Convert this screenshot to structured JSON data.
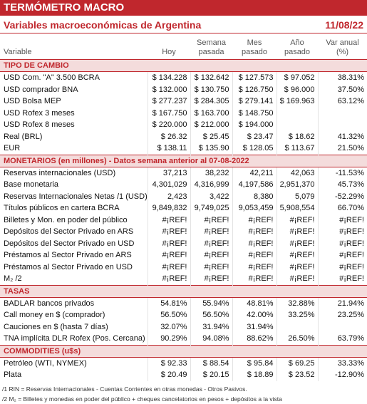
{
  "header": {
    "title": "TERMÓMETRO MACRO",
    "subtitle": "Variables macroeconómicas de Argentina",
    "date": "11/08/22"
  },
  "columns": [
    "Variable",
    "Hoy",
    "Semana pasada",
    "Mes pasado",
    "Año pasado",
    "Var anual (%)"
  ],
  "sections": [
    {
      "title": "TIPO DE CAMBIO",
      "rows": [
        [
          "USD Com. \"A\" 3.500 BCRA",
          "$ 134.228",
          "$ 132.642",
          "$ 127.573",
          "$ 97.052",
          "38.31%"
        ],
        [
          "USD comprador BNA",
          "$ 132.000",
          "$ 130.750",
          "$ 126.750",
          "$ 96.000",
          "37.50%"
        ],
        [
          "USD Bolsa MEP",
          "$ 277.237",
          "$ 284.305",
          "$ 279.141",
          "$ 169.963",
          "63.12%"
        ],
        [
          "USD Rofex 3 meses",
          "$ 167.750",
          "$ 163.700",
          "$ 148.750",
          null,
          null
        ],
        [
          "USD Rofex 8 meses",
          "$ 220.000",
          "$ 212.000",
          "$ 194.000",
          null,
          null
        ],
        [
          "Real (BRL)",
          "$ 26.32",
          "$ 25.45",
          "$ 23.47",
          "$ 18.62",
          "41.32%"
        ],
        [
          "EUR",
          "$ 138.11",
          "$ 135.90",
          "$ 128.05",
          "$ 113.67",
          "21.50%"
        ]
      ]
    },
    {
      "title": "MONETARIOS (en millones) - Datos semana anterior al 07-08-2022",
      "rows": [
        [
          "Reservas internacionales (USD)",
          "37,213",
          "38,232",
          "42,211",
          "42,063",
          "-11.53%"
        ],
        [
          "Base monetaria",
          "4,301,029",
          "4,316,999",
          "4,197,586",
          "2,951,370",
          "45.73%"
        ],
        [
          "Reservas Internacionales Netas /1 (USD)",
          "2,423",
          "3,422",
          "8,380",
          "5,079",
          "-52.29%"
        ],
        [
          "Títulos públicos en cartera BCRA",
          "9,849,832",
          "9,749,025",
          "9,053,459",
          "5,908,554",
          "66.70%"
        ],
        [
          "Billetes y Mon. en poder del público",
          "#¡REF!",
          "#¡REF!",
          "#¡REF!",
          "#¡REF!",
          "#¡REF!"
        ],
        [
          "Depósitos del Sector Privado en ARS",
          "#¡REF!",
          "#¡REF!",
          "#¡REF!",
          "#¡REF!",
          "#¡REF!"
        ],
        [
          "Depósitos del Sector Privado en USD",
          "#¡REF!",
          "#¡REF!",
          "#¡REF!",
          "#¡REF!",
          "#¡REF!"
        ],
        [
          "Préstamos al Sector Privado en ARS",
          "#¡REF!",
          "#¡REF!",
          "#¡REF!",
          "#¡REF!",
          "#¡REF!"
        ],
        [
          "Préstamos al Sector Privado en USD",
          "#¡REF!",
          "#¡REF!",
          "#¡REF!",
          "#¡REF!",
          "#¡REF!"
        ],
        [
          "M₂ /2",
          "#¡REF!",
          "#¡REF!",
          "#¡REF!",
          "#¡REF!",
          "#¡REF!"
        ]
      ]
    },
    {
      "title": "TASAS",
      "rows": [
        [
          "BADLAR bancos privados",
          "54.81%",
          "55.94%",
          "48.81%",
          "32.88%",
          "21.94%"
        ],
        [
          "Call money en $ (comprador)",
          "56.50%",
          "56.50%",
          "42.00%",
          "33.25%",
          "23.25%"
        ],
        [
          "Cauciones en $ (hasta 7 días)",
          "32.07%",
          "31.94%",
          "31.94%",
          null,
          null
        ],
        [
          "TNA implícita DLR Rofex (Pos. Cercana)",
          "90.29%",
          "94.08%",
          "88.62%",
          "26.50%",
          "63.79%"
        ]
      ]
    },
    {
      "title": "COMMODITIES (u$s)",
      "rows": [
        [
          "Petróleo (WTI, NYMEX)",
          "$ 92.33",
          "$ 88.54",
          "$ 95.84",
          "$ 69.25",
          "33.33%"
        ],
        [
          "Plata",
          "$ 20.49",
          "$ 20.15",
          "$ 18.89",
          "$ 23.52",
          "-12.90%"
        ]
      ]
    }
  ],
  "footnotes": [
    "/1 RIN = Reservas Internacionales - Cuentas Corrientes en otras monedas - Otros Pasivos.",
    "/2 M₂ = Billetes y monedas en poder del público + cheques cancelatorios en pesos + depósitos a la vista"
  ]
}
